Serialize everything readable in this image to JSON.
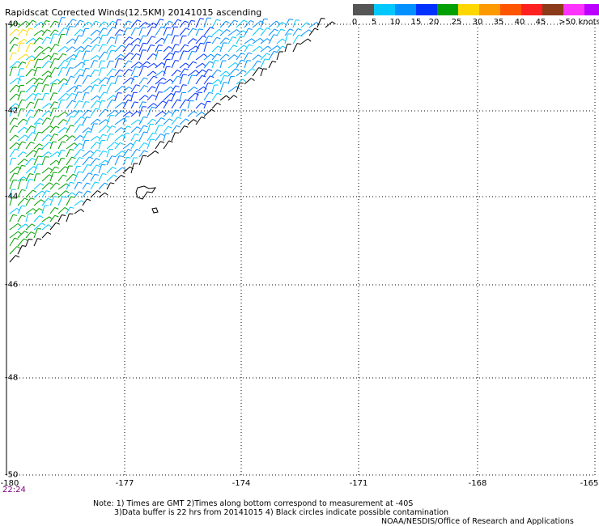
{
  "title": "Rapidscat Corrected Winds(12.5KM) 20141015 ascending",
  "legend": {
    "colors": [
      "#555555",
      "#00c8ff",
      "#0090ff",
      "#0032ff",
      "#00a000",
      "#ffd700",
      "#ff9900",
      "#ff5500",
      "#ff2020",
      "#8b3a1a",
      "#ff33ff",
      "#bb00ff",
      "#6600aa"
    ],
    "labels": [
      "0",
      "5",
      "10",
      "15",
      "20",
      "25",
      "30",
      "35",
      "40",
      "45",
      ">50 knots"
    ]
  },
  "map": {
    "lat_ticks": [
      "-40",
      "-42",
      "-44",
      "-46",
      "-48",
      "-50"
    ],
    "lon_ticks": [
      "-180",
      "-177",
      "-174",
      "-171",
      "-168",
      "-165"
    ],
    "time_label": "22:24",
    "gridlines": "dotted",
    "land_feature": "Chatham Islands outline"
  },
  "notes": [
    "Note: 1) Times are GMT 2)Times along bottom correspond to measurement at -40S",
    "3)Data buffer is 22 hrs from 20141015 4) Black circles indicate possible contamination",
    "NOAA/NESDIS/Office of Research and Applications"
  ]
}
